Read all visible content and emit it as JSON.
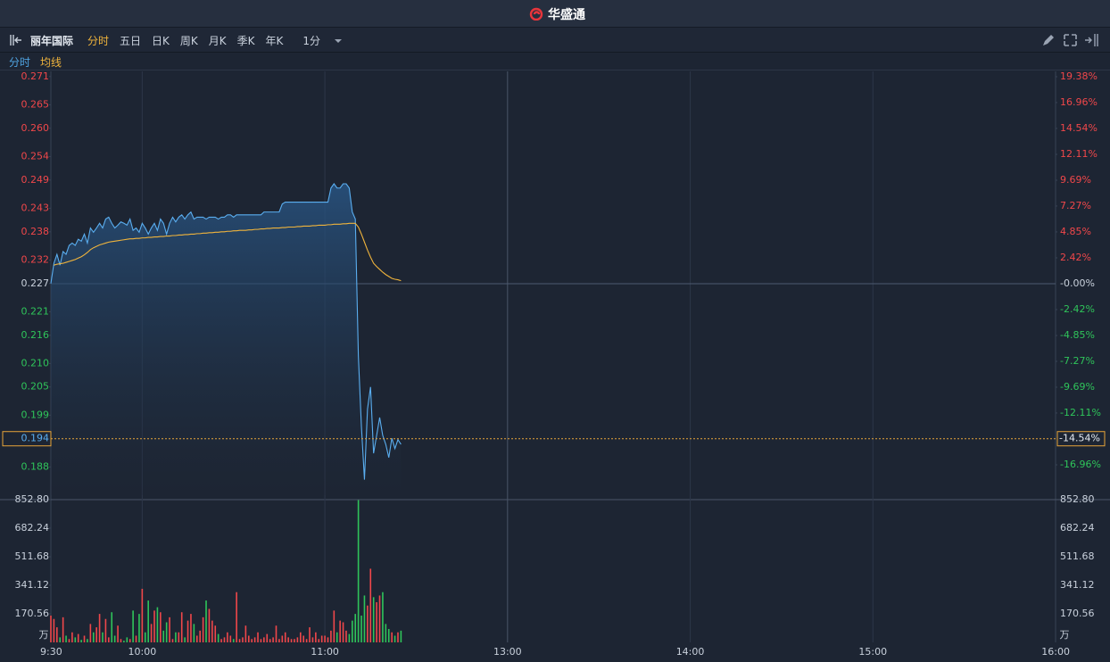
{
  "header": {
    "brand": "华盛通"
  },
  "toolbar": {
    "stock_name": "丽年国际",
    "tabs": [
      "分时",
      "五日",
      "日K",
      "周K",
      "月K",
      "季K",
      "年K",
      "1分"
    ]
  },
  "chart_data": [
    {
      "type": "line",
      "x": [
        0,
        1,
        2,
        3,
        4,
        5,
        6,
        7,
        8,
        9,
        10,
        11,
        12,
        13,
        14,
        15,
        16,
        17,
        18,
        19,
        20,
        21,
        22,
        23,
        24,
        25,
        26,
        27,
        28,
        29,
        30,
        31,
        32,
        33,
        34,
        35,
        36,
        37,
        38,
        39,
        40,
        41,
        42,
        43,
        44,
        45,
        46,
        47,
        48,
        49,
        50,
        51,
        52,
        53,
        54,
        55,
        56,
        57,
        58,
        59,
        60,
        61,
        62,
        63,
        64,
        65,
        66,
        67,
        68,
        69,
        70,
        71,
        72,
        73,
        74,
        75,
        76,
        77,
        78,
        79,
        80,
        81,
        82,
        83,
        84,
        85,
        86,
        87,
        88,
        89,
        90,
        91,
        92,
        93,
        94,
        95,
        96,
        97,
        98,
        99,
        100,
        101,
        102,
        103,
        104,
        105,
        106,
        107,
        108,
        109,
        110,
        111,
        112,
        113,
        114,
        115
      ],
      "series": [
        {
          "name": "分时",
          "color": "#5aaef0",
          "values": [
            0.227,
            0.2313,
            0.2332,
            0.2309,
            0.2338,
            0.2332,
            0.2351,
            0.2356,
            0.2351,
            0.2364,
            0.236,
            0.2375,
            0.2356,
            0.2388,
            0.2379,
            0.2388,
            0.2398,
            0.2388,
            0.2407,
            0.2411,
            0.2398,
            0.2388,
            0.2394,
            0.2401,
            0.2398,
            0.2394,
            0.2407,
            0.2383,
            0.2388,
            0.2379,
            0.2398,
            0.2388,
            0.2375,
            0.2388,
            0.2398,
            0.2383,
            0.2407,
            0.2398,
            0.2375,
            0.2398,
            0.2411,
            0.2401,
            0.2411,
            0.2416,
            0.2407,
            0.2416,
            0.2422,
            0.2407,
            0.2411,
            0.2411,
            0.2411,
            0.2407,
            0.2411,
            0.2411,
            0.2411,
            0.2407,
            0.2411,
            0.2411,
            0.2416,
            0.2416,
            0.2411,
            0.2416,
            0.2416,
            0.2416,
            0.2416,
            0.2416,
            0.2416,
            0.2416,
            0.2416,
            0.2416,
            0.2422,
            0.2422,
            0.2422,
            0.2422,
            0.2422,
            0.2422,
            0.2439,
            0.2443,
            0.2443,
            0.2443,
            0.2443,
            0.2443,
            0.2443,
            0.2443,
            0.2443,
            0.2443,
            0.2443,
            0.2443,
            0.2443,
            0.2443,
            0.2443,
            0.2443,
            0.2473,
            0.2482,
            0.2473,
            0.2473,
            0.2482,
            0.2482,
            0.2473,
            0.2422,
            0.2407,
            0.2116,
            0.1966,
            0.1853,
            0.2003,
            0.205,
            0.1909,
            0.1947,
            0.1985,
            0.1947,
            0.1928,
            0.19,
            0.1941,
            0.1919,
            0.1938,
            0.1928
          ]
        },
        {
          "name": "均线",
          "color": "#f0b43c",
          "values": [
            null,
            0.2309,
            0.2311,
            0.2312,
            0.2313,
            0.2315,
            0.2317,
            0.2319,
            0.2321,
            0.2324,
            0.2327,
            0.2331,
            0.2336,
            0.2342,
            0.2346,
            0.2349,
            0.2352,
            0.2354,
            0.2356,
            0.2358,
            0.2359,
            0.236,
            0.2361,
            0.2362,
            0.2363,
            0.2364,
            0.2365,
            0.2365,
            0.2366,
            0.2366,
            0.2367,
            0.2367,
            0.2368,
            0.2368,
            0.2369,
            0.2369,
            0.237,
            0.237,
            0.2371,
            0.2371,
            0.2372,
            0.2372,
            0.2373,
            0.2373,
            0.2374,
            0.2374,
            0.2375,
            0.2375,
            0.2376,
            0.2376,
            0.2377,
            0.2377,
            0.2378,
            0.2378,
            0.2379,
            0.2379,
            0.238,
            0.238,
            0.2381,
            0.2381,
            0.2382,
            0.2382,
            0.2383,
            0.2383,
            0.2383,
            0.2384,
            0.2384,
            0.2385,
            0.2385,
            0.2386,
            0.2386,
            0.2387,
            0.2387,
            0.2388,
            0.2388,
            0.2388,
            0.2389,
            0.2389,
            0.239,
            0.239,
            0.239,
            0.2391,
            0.2391,
            0.2392,
            0.2392,
            0.2392,
            0.2393,
            0.2393,
            0.2394,
            0.2394,
            0.2394,
            0.2395,
            0.2395,
            0.2396,
            0.2396,
            0.2396,
            0.2397,
            0.2397,
            0.2398,
            0.2398,
            0.2398,
            0.239,
            0.2375,
            0.2358,
            0.2341,
            0.2326,
            0.2313,
            0.2306,
            0.23,
            0.2294,
            0.2289,
            0.2285,
            0.2281,
            0.2279,
            0.2278,
            0.2276
          ]
        }
      ],
      "xlim": [
        0,
        330
      ],
      "ylim": [
        0.182,
        0.2721
      ],
      "yticks": [
        0.271,
        0.265,
        {
          "value": 0.26,
          "label": "0.260"
        },
        0.254,
        0.249,
        0.243,
        0.238,
        0.232,
        0.227,
        0.221,
        0.216,
        {
          "value": 0.21,
          "label": "0.210"
        },
        0.205,
        0.199,
        0.188
      ],
      "y2lim": [
        -19.8,
        19.88
      ],
      "y2ticks": [
        {
          "value": 19.38,
          "label": "19.38%"
        },
        {
          "value": 16.96,
          "label": "16.96%"
        },
        {
          "value": 14.54,
          "label": "14.54%"
        },
        {
          "value": 12.11,
          "label": "12.11%"
        },
        {
          "value": 9.69,
          "label": "9.69%"
        },
        {
          "value": 7.27,
          "label": "7.27%"
        },
        {
          "value": 4.85,
          "label": "4.85%"
        },
        {
          "value": 2.42,
          "label": "2.42%"
        },
        {
          "value": 0,
          "label": "-0.00%"
        },
        {
          "value": -2.42,
          "label": "-2.42%"
        },
        {
          "value": -4.85,
          "label": "-4.85%"
        },
        {
          "value": -7.27,
          "label": "-7.27%"
        },
        {
          "value": -9.69,
          "label": "-9.69%"
        },
        {
          "value": -12.11,
          "label": "-12.11%"
        },
        {
          "value": -16.96,
          "label": "-16.96%"
        }
      ],
      "last_price": 0.194,
      "last_change": {
        "value": -14.54,
        "label": "-14.54%"
      },
      "up_color": "#f0474a",
      "down_color": "#2fc45a"
    },
    {
      "type": "bar",
      "x": [
        0,
        1,
        2,
        3,
        4,
        5,
        6,
        7,
        8,
        9,
        10,
        11,
        12,
        13,
        14,
        15,
        16,
        17,
        18,
        19,
        20,
        21,
        22,
        23,
        24,
        25,
        26,
        27,
        28,
        29,
        30,
        31,
        32,
        33,
        34,
        35,
        36,
        37,
        38,
        39,
        40,
        41,
        42,
        43,
        44,
        45,
        46,
        47,
        48,
        49,
        50,
        51,
        52,
        53,
        54,
        55,
        56,
        57,
        58,
        59,
        60,
        61,
        62,
        63,
        64,
        65,
        66,
        67,
        68,
        69,
        70,
        71,
        72,
        73,
        74,
        75,
        76,
        77,
        78,
        79,
        80,
        81,
        82,
        83,
        84,
        85,
        86,
        87,
        88,
        89,
        90,
        91,
        92,
        93,
        94,
        95,
        96,
        97,
        98,
        99,
        100,
        101,
        102,
        103,
        104,
        105,
        106,
        107,
        108,
        109,
        110,
        111,
        112,
        113,
        114,
        115
      ],
      "values": [
        160,
        140,
        90,
        30,
        150,
        40,
        20,
        60,
        30,
        50,
        15,
        40,
        20,
        110,
        60,
        90,
        170,
        60,
        140,
        30,
        180,
        40,
        100,
        20,
        10,
        30,
        20,
        190,
        40,
        170,
        320,
        60,
        250,
        110,
        190,
        210,
        180,
        70,
        120,
        150,
        20,
        60,
        60,
        180,
        30,
        130,
        170,
        110,
        40,
        70,
        150,
        250,
        200,
        130,
        100,
        50,
        20,
        30,
        60,
        40,
        20,
        300,
        20,
        30,
        100,
        40,
        20,
        30,
        60,
        20,
        30,
        50,
        20,
        30,
        100,
        20,
        40,
        60,
        30,
        20,
        20,
        30,
        60,
        40,
        20,
        90,
        30,
        60,
        20,
        40,
        40,
        30,
        70,
        190,
        60,
        130,
        120,
        70,
        50,
        130,
        170,
        850,
        160,
        280,
        220,
        440,
        270,
        240,
        280,
        300,
        110,
        80,
        60,
        40,
        60,
        70
      ],
      "xlim": [
        0,
        330
      ],
      "xticks": [
        {
          "value": 0,
          "label": "9:30"
        },
        {
          "value": 30,
          "label": "10:00"
        },
        {
          "value": 90,
          "label": "11:00"
        },
        {
          "value": 150,
          "label": "13:00"
        },
        {
          "value": 210,
          "label": "14:00"
        },
        {
          "value": 270,
          "label": "15:00"
        },
        {
          "value": 330,
          "label": "16:00"
        }
      ],
      "ylim": [
        0,
        852.8
      ],
      "yticks": [
        {
          "value": 852.8,
          "label": "852.80"
        },
        682.24,
        511.68,
        341.12,
        170.56
      ],
      "unit": "万"
    }
  ]
}
